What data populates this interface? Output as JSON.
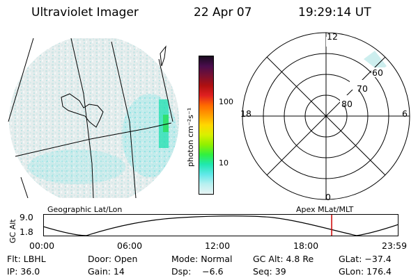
{
  "header": {
    "title": "Ultraviolet Imager",
    "date": "22 Apr 07",
    "time": "19:29:14 UT"
  },
  "colorbar": {
    "label": "photon cm⁻²s⁻¹",
    "ticks": [
      "100",
      "10"
    ],
    "colors": [
      "#1a0b1f",
      "#4a0d4d",
      "#7a1030",
      "#b01010",
      "#e02020",
      "#ff6a00",
      "#ffa000",
      "#ffd800",
      "#d8f000",
      "#90f000",
      "#30f040",
      "#20e8b0",
      "#60e8e8",
      "#b8f0f0",
      "#e8f4f4"
    ]
  },
  "polar_plot": {
    "mlt_labels": {
      "top": "12",
      "right": "6",
      "bottom": "0",
      "left": "18"
    },
    "lat_labels": [
      "60",
      "70",
      "80"
    ]
  },
  "map_panel": {
    "label": "Geographic Lat/Lon"
  },
  "polar_panel": {
    "label": "Apex  MLat/MLT"
  },
  "altitude_plot": {
    "ylabel": "GC Alt",
    "yticks": [
      "9.0",
      "1.8"
    ],
    "xticks": [
      "00:00",
      "06:00",
      "12:00",
      "18:00",
      "23:59"
    ],
    "current_time_fraction": 0.812
  },
  "status": {
    "filter": "Flt: LBHL",
    "door": "Door: Open",
    "mode": "Mode: Normal",
    "gc_alt": "GC Alt: 4.8 Re",
    "glat": "GLat: −37.4",
    "ip": "IP: 36.0",
    "gain": "Gain: 14",
    "dsp": "Dsp:    −6.6",
    "seq": "Seq: 39",
    "glon": "GLon: 176.4"
  },
  "accent_colors": {
    "marker": "#cc0000",
    "aurora": "#20e0c0"
  }
}
